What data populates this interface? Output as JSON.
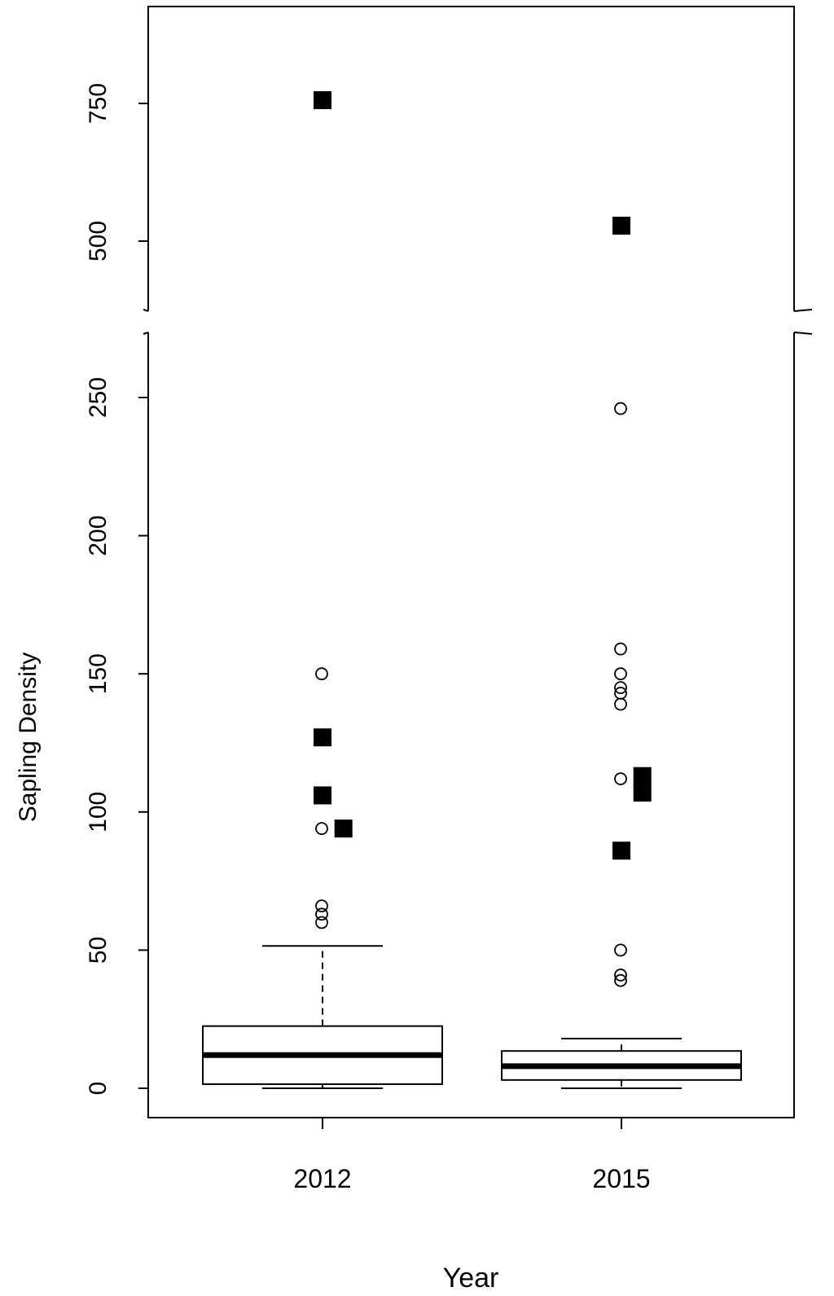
{
  "chart_data": {
    "type": "box",
    "xlabel": "Year",
    "ylabel": "Sapling Density",
    "categories": [
      "2012",
      "2015"
    ],
    "axis_break": {
      "lower_range": [
        0,
        270
      ],
      "upper_range": [
        400,
        880
      ]
    },
    "y_ticks_lower": [
      0,
      50,
      100,
      150,
      200,
      250
    ],
    "y_ticks_upper": [
      500,
      750
    ],
    "boxes": [
      {
        "category": "2012",
        "whisker_low": 0,
        "q1": 1.5,
        "median": 12,
        "q3": 22.5,
        "whisker_high": 51.5
      },
      {
        "category": "2015",
        "whisker_low": 0,
        "q1": 3,
        "median": 8,
        "q3": 13.5,
        "whisker_high": 18
      }
    ],
    "outliers": [
      {
        "category": "2012",
        "values": [
          60,
          63,
          66,
          94,
          150
        ]
      },
      {
        "category": "2015",
        "values": [
          39,
          41,
          50,
          112,
          139,
          143,
          145,
          150,
          159,
          246
        ]
      }
    ],
    "highlighted_points": [
      {
        "category": "2012",
        "offset": 0,
        "value": 756
      },
      {
        "category": "2012",
        "offset": 0,
        "value": 127
      },
      {
        "category": "2012",
        "offset": 0,
        "value": 106
      },
      {
        "category": "2012",
        "offset": 0.07,
        "value": 94
      },
      {
        "category": "2015",
        "offset": 0,
        "value": 528
      },
      {
        "category": "2015",
        "offset": 0.07,
        "value": 113
      },
      {
        "category": "2015",
        "offset": 0.07,
        "value": 107
      },
      {
        "category": "2015",
        "offset": 0,
        "value": 86
      }
    ],
    "legend": "none",
    "grid": false
  }
}
